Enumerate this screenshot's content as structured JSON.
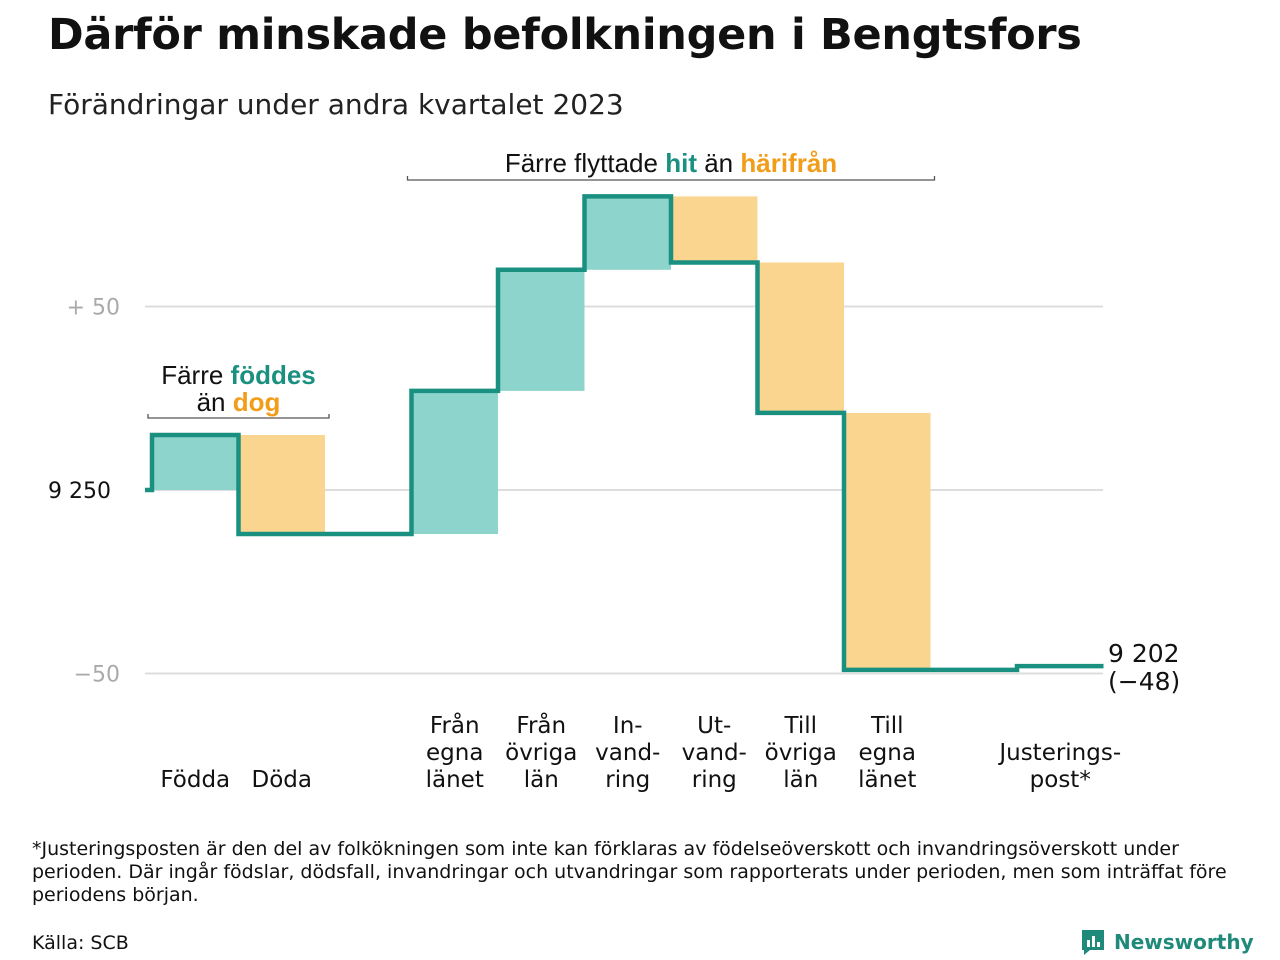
{
  "title": "Därför minskade befolkningen i Bengtsfors",
  "subtitle": "Förändringar under andra kvartalet 2023",
  "colors": {
    "inflow": "#8dd4cc",
    "outflow": "#f9d590",
    "line": "#1a9081",
    "teal_text": "#1a9081",
    "orange_text": "#f29d1a",
    "grid": "#dddddd"
  },
  "chart_data": {
    "type": "waterfall",
    "start_value": 9250,
    "end_value": 9202,
    "end_label": "9 202",
    "end_change_label": "(−48)",
    "y_ticks": [
      {
        "value": 50,
        "label": "+  50",
        "style": "muted"
      },
      {
        "value": 0,
        "label": "9  250",
        "style": "strong"
      },
      {
        "value": -50,
        "label": "−50",
        "style": "muted"
      }
    ],
    "ylim": [
      -57,
      83
    ],
    "steps": [
      {
        "label": [
          "Födda"
        ],
        "change": 15,
        "kind": "in"
      },
      {
        "label": [
          "Döda"
        ],
        "change": -27,
        "kind": "out"
      },
      {
        "label": [],
        "change": 0,
        "kind": "gap"
      },
      {
        "label": [
          "Från",
          "egna",
          "länet"
        ],
        "change": 39,
        "kind": "in"
      },
      {
        "label": [
          "Från",
          "övriga",
          "län"
        ],
        "change": 33,
        "kind": "in"
      },
      {
        "label": [
          "In-",
          "vand-",
          "ring"
        ],
        "change": 20,
        "kind": "in"
      },
      {
        "label": [
          "Ut-",
          "vand-",
          "ring"
        ],
        "change": -18,
        "kind": "out"
      },
      {
        "label": [
          "Till",
          "övriga",
          "län"
        ],
        "change": -41,
        "kind": "out"
      },
      {
        "label": [
          "Till",
          "egna",
          "länet"
        ],
        "change": -70,
        "kind": "out"
      },
      {
        "label": [],
        "change": 0,
        "kind": "gap"
      },
      {
        "label": [
          "Justerings-",
          "post*"
        ],
        "change": 1,
        "kind": "adjust"
      }
    ],
    "annotations": [
      {
        "id": "births",
        "line1": [
          {
            "text": "Färre ",
            "color": "default"
          },
          {
            "text": "föddes",
            "color": "teal"
          }
        ],
        "line2": [
          {
            "text": "än ",
            "color": "default"
          },
          {
            "text": "dog",
            "color": "orange"
          }
        ],
        "from_step": 0,
        "to_step": 1
      },
      {
        "id": "moves",
        "line1": [
          {
            "text": "Färre flyttade ",
            "color": "default"
          },
          {
            "text": "hit",
            "color": "teal"
          },
          {
            "text": "  än ",
            "color": "default"
          },
          {
            "text": "härifrån",
            "color": "orange"
          }
        ],
        "line2": [],
        "from_step": 3,
        "to_step": 8
      }
    ]
  },
  "footnote": "*Justeringsposten är den del av folkökningen som inte kan förklaras av födelseöverskott och invandringsöverskott under perioden. Där ingår födslar, dödsfall, invandringar och utvandringar som rapporterats under perioden, men som inträffat före periodens början.",
  "source": "Källa: SCB",
  "logo_text": "Newsworthy"
}
